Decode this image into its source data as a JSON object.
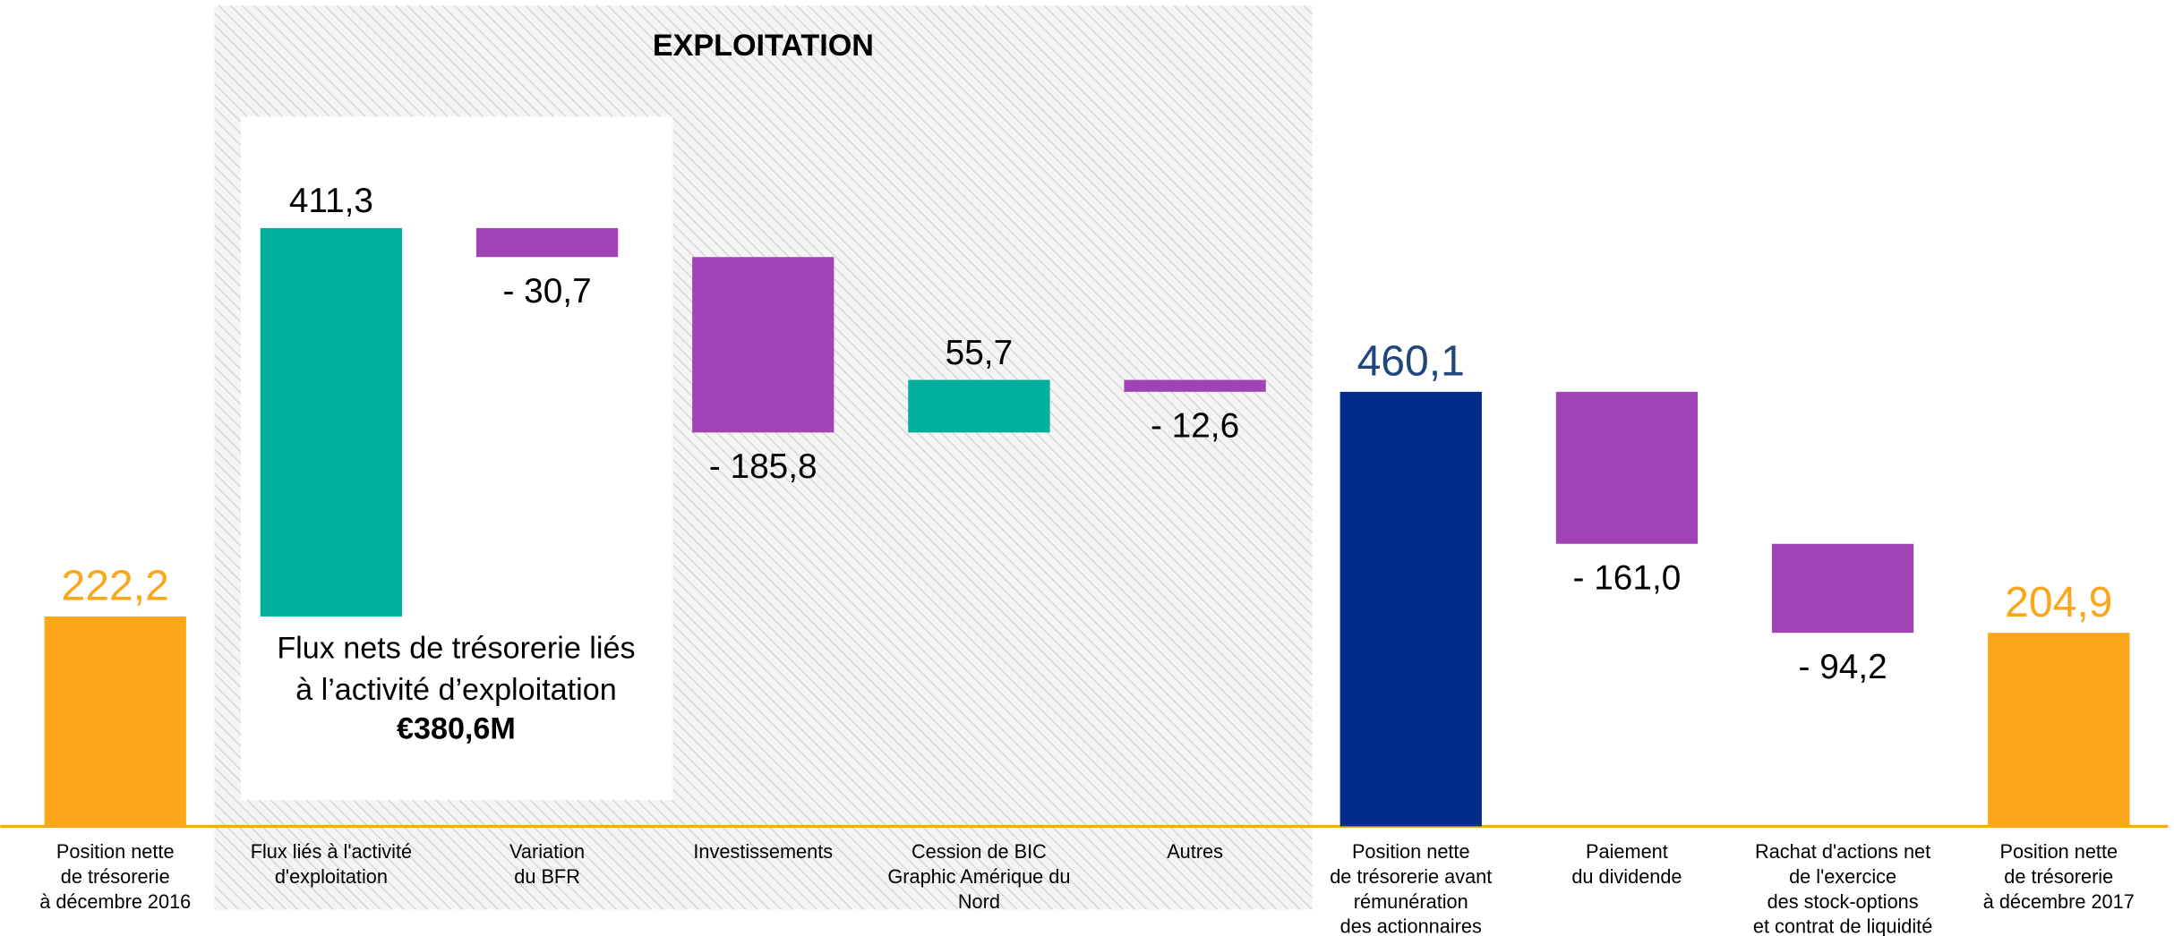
{
  "chart_data": {
    "type": "waterfall",
    "categories": [
      [
        "Position nette",
        "de trésorerie",
        "à décembre 2016"
      ],
      [
        "Flux liés à l'activité",
        "d'exploitation"
      ],
      [
        "Variation",
        "du BFR"
      ],
      [
        "Investissements"
      ],
      [
        "Cession de BIC",
        "Graphic Amérique du",
        "Nord"
      ],
      [
        "Autres"
      ],
      [
        "Position nette",
        "de trésorerie avant",
        "rémunération",
        "des actionnaires"
      ],
      [
        "Paiement",
        "du dividende"
      ],
      [
        "Rachat d'actions net",
        "de l'exercice",
        "des stock-options",
        "et contrat de liquidité"
      ],
      [
        "Position nette",
        "de trésorerie",
        "à décembre 2017"
      ]
    ],
    "values": [
      222.2,
      411.3,
      -30.7,
      -185.8,
      55.7,
      -12.6,
      460.1,
      -161.0,
      -94.2,
      204.9
    ],
    "value_labels": [
      "222,2",
      "411,3",
      "- 30,7",
      "- 185,8",
      "55,7",
      "- 12,6",
      "460,1",
      "- 161,0",
      "- 94,2",
      "204,9"
    ],
    "is_total": [
      true,
      false,
      false,
      false,
      false,
      false,
      true,
      false,
      false,
      true
    ],
    "colors": [
      "#fca61b",
      "#00ae9c",
      "#a044b5",
      "#a044b5",
      "#00ae9c",
      "#a044b5",
      "#002b8c",
      "#a044b5",
      "#a044b5",
      "#fca61b"
    ],
    "label_colors": [
      "#fca61b",
      "#000000",
      "#000000",
      "#000000",
      "#000000",
      "#000000",
      "#1f467d",
      "#000000",
      "#000000",
      "#fca61b"
    ],
    "ylim": [
      0,
      875
    ],
    "annotations": {
      "section_title": "EXPLOITATION",
      "box_lines": [
        "Flux nets de trésorerie liés",
        "à l’activité d’exploitation",
        "€380,6M"
      ]
    }
  }
}
